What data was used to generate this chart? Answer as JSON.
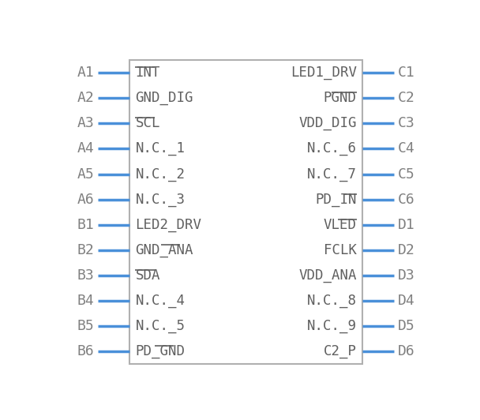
{
  "bg_color": "#ffffff",
  "box_color": "#b0b0b0",
  "pin_color": "#4a90d9",
  "text_color": "#808080",
  "inner_text_color": "#606060",
  "left_pins": [
    {
      "label": "A1",
      "segments": [
        {
          "text": "INT",
          "bar": true
        }
      ]
    },
    {
      "label": "A2",
      "segments": [
        {
          "text": "GND_DIG",
          "bar": false
        }
      ]
    },
    {
      "label": "A3",
      "segments": [
        {
          "text": "SCL",
          "bar": true
        }
      ]
    },
    {
      "label": "A4",
      "segments": [
        {
          "text": "N.C._1",
          "bar": false
        }
      ]
    },
    {
      "label": "A5",
      "segments": [
        {
          "text": "N.C._2",
          "bar": false
        }
      ]
    },
    {
      "label": "A6",
      "segments": [
        {
          "text": "N.C._3",
          "bar": false
        }
      ]
    },
    {
      "label": "B1",
      "segments": [
        {
          "text": "LED2_DRV",
          "bar": false
        }
      ]
    },
    {
      "label": "B2",
      "segments": [
        {
          "text": "GND_ANA",
          "bar": true
        }
      ]
    },
    {
      "label": "B3",
      "segments": [
        {
          "text": "SDA",
          "bar": true
        }
      ]
    },
    {
      "label": "B4",
      "segments": [
        {
          "text": "N.C._4",
          "bar": false
        }
      ]
    },
    {
      "label": "B5",
      "segments": [
        {
          "text": "N.C._5",
          "bar": false
        }
      ]
    },
    {
      "label": "B6",
      "segments": [
        {
          "text": "PD_GND",
          "bar": true
        }
      ]
    }
  ],
  "right_pins": [
    {
      "label": "C1",
      "segments": [
        {
          "text": "LED1_DRV",
          "bar": false
        }
      ]
    },
    {
      "label": "C2",
      "segments": [
        {
          "text": "PGND",
          "bar": true
        }
      ]
    },
    {
      "label": "C3",
      "segments": [
        {
          "text": "VDD_DIG",
          "bar": false
        }
      ]
    },
    {
      "label": "C4",
      "segments": [
        {
          "text": "N.C._6",
          "bar": false
        }
      ]
    },
    {
      "label": "C5",
      "segments": [
        {
          "text": "N.C._7",
          "bar": false
        }
      ]
    },
    {
      "label": "C6",
      "segments": [
        {
          "text": "PD_IN",
          "bar": true
        }
      ]
    },
    {
      "label": "D1",
      "segments": [
        {
          "text": "VLED",
          "bar": true
        }
      ]
    },
    {
      "label": "D2",
      "segments": [
        {
          "text": "FCLK",
          "bar": false
        }
      ]
    },
    {
      "label": "D3",
      "segments": [
        {
          "text": "VDD_ANA",
          "bar": false
        }
      ]
    },
    {
      "label": "D4",
      "segments": [
        {
          "text": "N.C._8",
          "bar": false
        }
      ]
    },
    {
      "label": "D5",
      "segments": [
        {
          "text": "N.C._9",
          "bar": false
        }
      ]
    },
    {
      "label": "D6",
      "segments": [
        {
          "text": "C2_P",
          "bar": false
        }
      ]
    }
  ],
  "overline_pins_left": {
    "A1": "INT",
    "A3": "SCL",
    "B2": "ANA",
    "B3": "SDA",
    "B6": "GND"
  },
  "overline_pins_right": {
    "C2": "PGND",
    "C6": "IN",
    "D1": "LED"
  }
}
